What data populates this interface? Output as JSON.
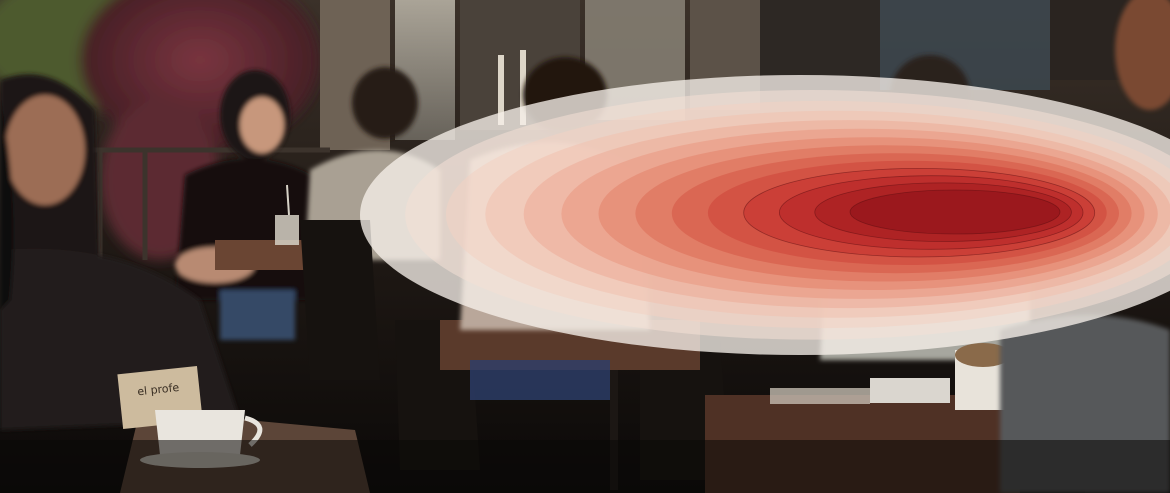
{
  "scene": {
    "kind": "photograph",
    "subject": "cafe-interior-with-seated-patrons",
    "table_card_text": "el profe",
    "overlay": {
      "kind": "attention-heatmap",
      "palette": [
        "#f6efe9",
        "#f2c9b8",
        "#e8937a",
        "#d85a45",
        "#c0282a",
        "#8c1017"
      ],
      "contour_levels": 14
    },
    "colors": {
      "floor_dark": "#0b0908",
      "wood_table": "#5a3a2b",
      "window_light": "#b9b4a8",
      "foliage": "#6b2f3a"
    }
  }
}
